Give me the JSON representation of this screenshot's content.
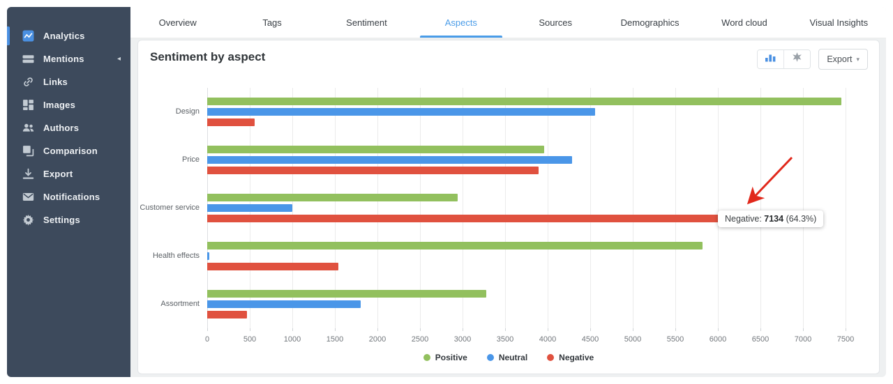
{
  "sidebar": {
    "items": [
      {
        "label": "Analytics",
        "icon": "analytics-icon",
        "active": true,
        "collapsible": false
      },
      {
        "label": "Mentions",
        "icon": "mentions-icon",
        "active": false,
        "collapsible": true
      },
      {
        "label": "Links",
        "icon": "link-icon",
        "active": false,
        "collapsible": false
      },
      {
        "label": "Images",
        "icon": "images-icon",
        "active": false,
        "collapsible": false
      },
      {
        "label": "Authors",
        "icon": "authors-icon",
        "active": false,
        "collapsible": false
      },
      {
        "label": "Comparison",
        "icon": "comparison-icon",
        "active": false,
        "collapsible": false
      },
      {
        "label": "Export",
        "icon": "export-icon",
        "active": false,
        "collapsible": false
      },
      {
        "label": "Notifications",
        "icon": "notifications-icon",
        "active": false,
        "collapsible": false
      },
      {
        "label": "Settings",
        "icon": "settings-icon",
        "active": false,
        "collapsible": false
      }
    ],
    "collapse_arrow": "◂"
  },
  "tabs": {
    "items": [
      "Overview",
      "Tags",
      "Sentiment",
      "Aspects",
      "Sources",
      "Demographics",
      "Word cloud",
      "Visual Insights"
    ],
    "active_index": 3
  },
  "panel": {
    "title": "Sentiment by aspect",
    "controls": {
      "chart_type_icons": [
        "bar-chart-icon",
        "radar-chart-icon"
      ],
      "active_chart_type": 0,
      "export_label": "Export",
      "export_caret": "▾"
    }
  },
  "chart_data": {
    "type": "bar",
    "orientation": "horizontal",
    "title": "Sentiment by aspect",
    "categories": [
      "Design",
      "Price",
      "Customer service",
      "Health effects",
      "Assortment"
    ],
    "series": [
      {
        "name": "Positive",
        "color": "#92c05e",
        "values": [
          7450,
          3960,
          2940,
          5820,
          3280
        ]
      },
      {
        "name": "Neutral",
        "color": "#4a96e8",
        "values": [
          4560,
          4290,
          1000,
          25,
          1800
        ]
      },
      {
        "name": "Negative",
        "color": "#e0513f",
        "values": [
          560,
          3890,
          7134,
          1540,
          470
        ]
      }
    ],
    "xlim": [
      0,
      7500
    ],
    "xticks": [
      0,
      500,
      1000,
      1500,
      2000,
      2500,
      3000,
      3500,
      4000,
      4500,
      5000,
      5500,
      6000,
      6500,
      7000,
      7500
    ],
    "grid": "vertical",
    "legend_position": "bottom"
  },
  "tooltip": {
    "category": "Customer service",
    "series": "Negative",
    "text_prefix": "Negative: ",
    "text_value": "7134",
    "text_suffix": " (64.3%)"
  },
  "annotation": {
    "shape": "arrow",
    "points_at": "tooltip"
  },
  "colors": {
    "positive": "#92c05e",
    "neutral": "#4a96e8",
    "negative": "#e0513f",
    "accent_blue": "#4a90e2",
    "tab_active": "#4a9ce8",
    "sidebar_bg": "#3d4a5c",
    "annotation_red": "#e1281b"
  }
}
